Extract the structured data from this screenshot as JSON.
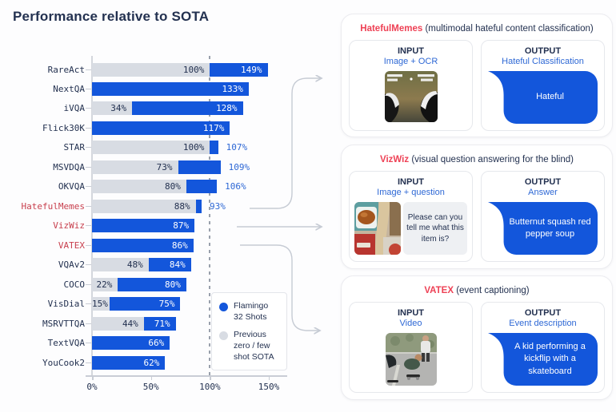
{
  "title": "Performance relative to SOTA",
  "colors": {
    "flamingo_blue": "#1356db",
    "sota_gray": "#d8dce3",
    "navy_text": "#233150",
    "red_category": "#c8404e",
    "panel_red": "#ee4155",
    "blue_value_text": "#2e68d5",
    "bubble_blue": "#1356db"
  },
  "chart_data": {
    "type": "bar",
    "orientation": "horizontal",
    "unit": "%",
    "x_ticks": [
      0,
      50,
      100,
      150
    ],
    "xlim": [
      0,
      170
    ],
    "reference_line": 100,
    "series_names": [
      "Previous zero / few shot SOTA",
      "Flamingo 32 Shots"
    ],
    "rows": [
      {
        "category": "RareAct",
        "sota": 100,
        "flamingo": 149,
        "label_pos": "inside",
        "highlight": false
      },
      {
        "category": "NextQA",
        "sota": null,
        "flamingo": 133,
        "label_pos": "inside",
        "highlight": false
      },
      {
        "category": "iVQA",
        "sota": 34,
        "flamingo": 128,
        "label_pos": "inside",
        "highlight": false
      },
      {
        "category": "Flick30K",
        "sota": null,
        "flamingo": 117,
        "label_pos": "inside",
        "highlight": false
      },
      {
        "category": "STAR",
        "sota": 100,
        "flamingo": 107,
        "label_pos": "outside",
        "highlight": false
      },
      {
        "category": "MSVDQA",
        "sota": 73,
        "flamingo": 109,
        "label_pos": "outside",
        "highlight": false
      },
      {
        "category": "OKVQA",
        "sota": 80,
        "flamingo": 106,
        "label_pos": "outside",
        "highlight": false
      },
      {
        "category": "HatefulMemes",
        "sota": 88,
        "flamingo": 93,
        "label_pos": "outside",
        "highlight": true
      },
      {
        "category": "VizWiz",
        "sota": null,
        "flamingo": 87,
        "label_pos": "inside",
        "highlight": true
      },
      {
        "category": "VATEX",
        "sota": null,
        "flamingo": 86,
        "label_pos": "inside",
        "highlight": true
      },
      {
        "category": "VQAv2",
        "sota": 48,
        "flamingo": 84,
        "label_pos": "inside",
        "highlight": false
      },
      {
        "category": "COCO",
        "sota": 22,
        "flamingo": 80,
        "label_pos": "inside",
        "highlight": false
      },
      {
        "category": "VisDial",
        "sota": 15,
        "flamingo": 75,
        "label_pos": "inside",
        "highlight": false
      },
      {
        "category": "MSRVTTQA",
        "sota": 44,
        "flamingo": 71,
        "label_pos": "inside",
        "highlight": false
      },
      {
        "category": "TextVQA",
        "sota": null,
        "flamingo": 66,
        "label_pos": "inside",
        "highlight": false
      },
      {
        "category": "YouCook2",
        "sota": null,
        "flamingo": 62,
        "label_pos": "inside",
        "highlight": false
      }
    ]
  },
  "legend": {
    "flamingo_label": "Flamingo\n32 Shots",
    "previous_label": "Previous\nzero / few\nshot SOTA"
  },
  "panels": [
    {
      "name": "HatefulMemes",
      "description": "(multimodal hateful content classification)",
      "input": {
        "heading": "INPUT",
        "subtitle": "Image + OCR",
        "question": ""
      },
      "output": {
        "heading": "OUTPUT",
        "subtitle": "Hateful Classification",
        "bubble": "Hateful"
      }
    },
    {
      "name": "VizWiz",
      "description": "(visual question answering for the blind)",
      "input": {
        "heading": "INPUT",
        "subtitle": "Image + question",
        "question": "Please can you tell me what this item is?"
      },
      "output": {
        "heading": "OUTPUT",
        "subtitle": "Answer",
        "bubble": "Butternut squash red pepper soup"
      }
    },
    {
      "name": "VATEX",
      "description": "(event captioning)",
      "input": {
        "heading": "INPUT",
        "subtitle": "Video",
        "question": ""
      },
      "output": {
        "heading": "OUTPUT",
        "subtitle": "Event description",
        "bubble": "A kid performing a kickflip with a skateboard"
      }
    }
  ]
}
